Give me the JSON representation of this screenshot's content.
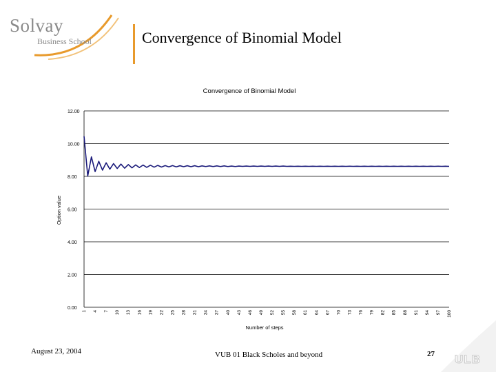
{
  "logo": {
    "name": "Solvay",
    "sub": "Business School"
  },
  "slide": {
    "title": "Convergence of Binomial Model"
  },
  "footer": {
    "date": "August 23, 2004",
    "center": "VUB 01 Black Scholes and beyond",
    "page": "27",
    "ulb_logo": "ULB"
  },
  "colors": {
    "accent": "#e89a2c",
    "series": "#1a1a7a"
  },
  "chart_data": {
    "type": "line",
    "title": "Convergence of Binomial Model",
    "xlabel": "Number of steps",
    "ylabel": "Option value",
    "ylim": [
      0,
      12
    ],
    "yticks": [
      "0.00",
      "2.00",
      "4.00",
      "6.00",
      "8.00",
      "10.00",
      "12.00"
    ],
    "xticks": [
      "1",
      "4",
      "7",
      "10",
      "13",
      "16",
      "19",
      "22",
      "25",
      "28",
      "31",
      "34",
      "37",
      "40",
      "43",
      "46",
      "49",
      "52",
      "55",
      "58",
      "61",
      "64",
      "67",
      "70",
      "73",
      "76",
      "79",
      "82",
      "85",
      "88",
      "91",
      "94",
      "97",
      "100"
    ],
    "grid": "horizontal",
    "series": [
      {
        "x_start": 1,
        "x_step": 1,
        "values": [
          10.45,
          8.02,
          9.19,
          8.29,
          8.92,
          8.38,
          8.83,
          8.44,
          8.78,
          8.48,
          8.75,
          8.5,
          8.72,
          8.52,
          8.7,
          8.54,
          8.69,
          8.55,
          8.68,
          8.56,
          8.67,
          8.57,
          8.66,
          8.58,
          8.66,
          8.58,
          8.65,
          8.59,
          8.65,
          8.59,
          8.65,
          8.59,
          8.64,
          8.6,
          8.64,
          8.6,
          8.64,
          8.6,
          8.64,
          8.6,
          8.63,
          8.6,
          8.63,
          8.61,
          8.63,
          8.61,
          8.63,
          8.61,
          8.63,
          8.61,
          8.63,
          8.61,
          8.63,
          8.61,
          8.63,
          8.61,
          8.62,
          8.61,
          8.62,
          8.61,
          8.62,
          8.61,
          8.62,
          8.61,
          8.62,
          8.61,
          8.62,
          8.61,
          8.62,
          8.61,
          8.62,
          8.61,
          8.62,
          8.61,
          8.62,
          8.61,
          8.62,
          8.61,
          8.62,
          8.61,
          8.62,
          8.61,
          8.62,
          8.61,
          8.62,
          8.61,
          8.62,
          8.61,
          8.62,
          8.61,
          8.62,
          8.61,
          8.62,
          8.61,
          8.62,
          8.61,
          8.62,
          8.61,
          8.62,
          8.61
        ]
      }
    ]
  }
}
